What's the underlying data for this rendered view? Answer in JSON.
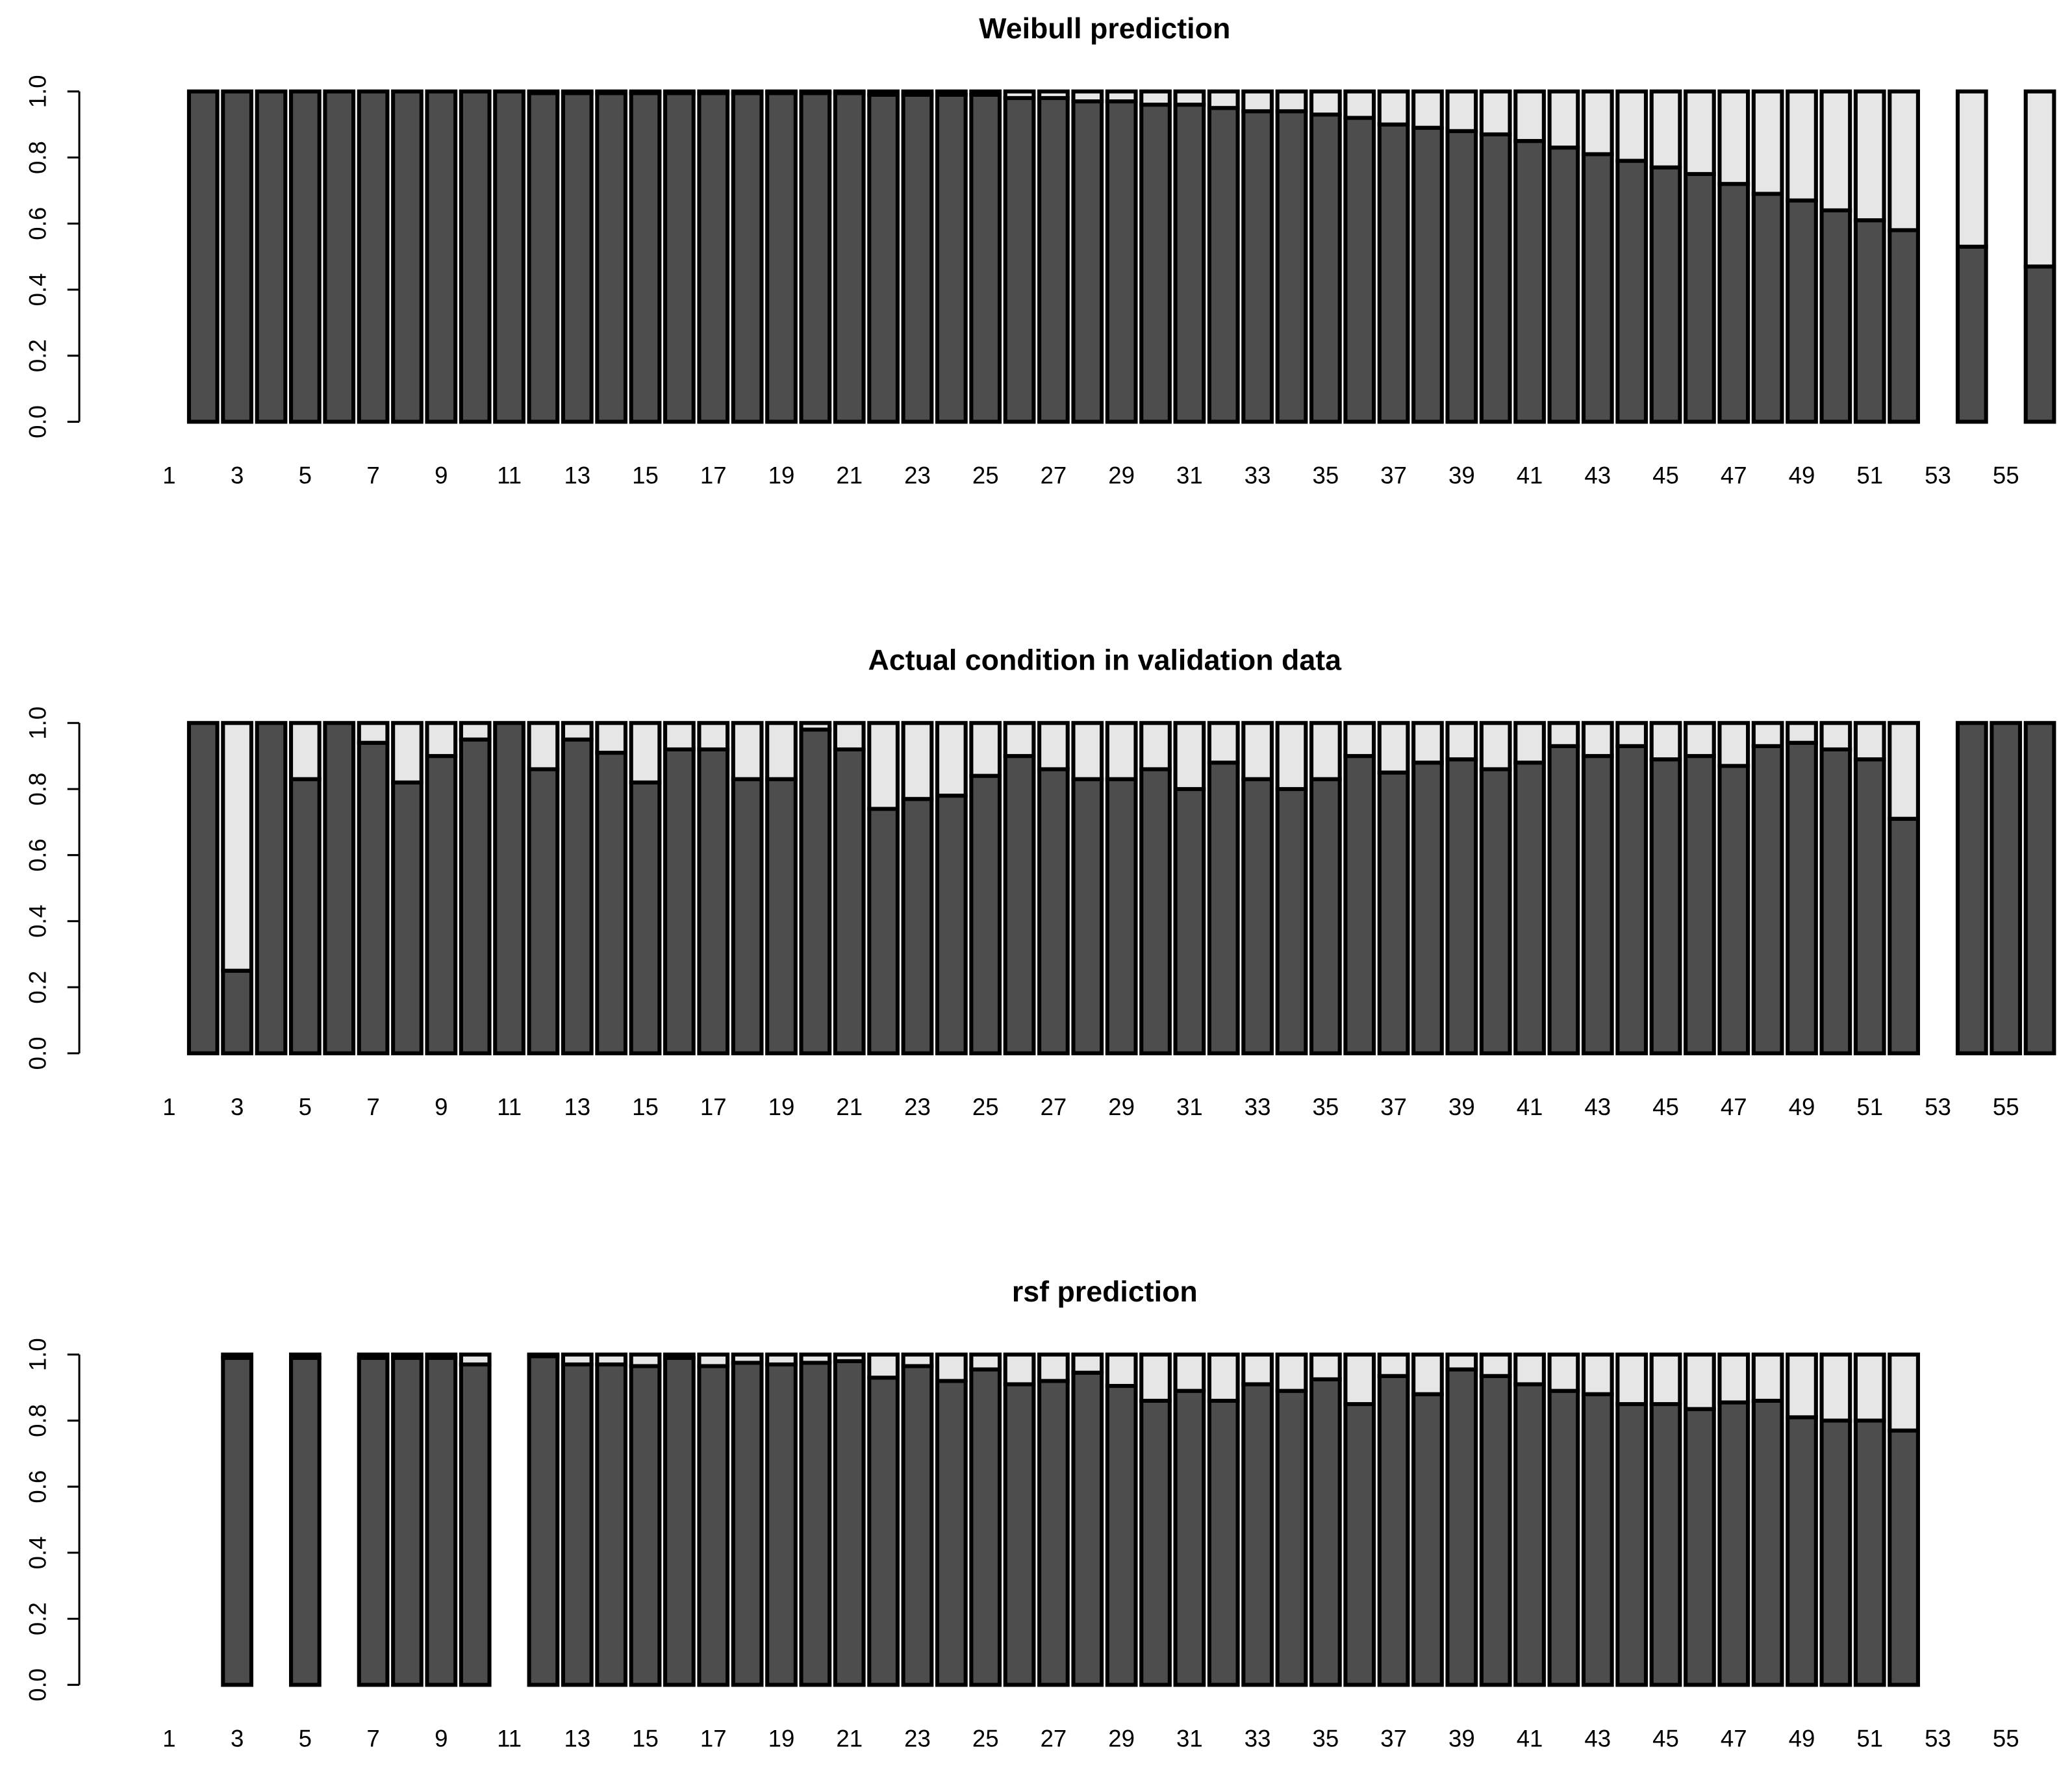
{
  "chart_data": [
    {
      "type": "bar",
      "stacked": true,
      "title": "Weibull prediction",
      "categories": [
        "1",
        null,
        "3",
        null,
        "5",
        null,
        "7",
        null,
        "9",
        null,
        "11",
        null,
        "13",
        null,
        "15",
        null,
        "17",
        null,
        "19",
        null,
        "21",
        null,
        "23",
        null,
        "25",
        null,
        "27",
        null,
        "29",
        null,
        "31",
        null,
        "33",
        null,
        "35",
        null,
        "37",
        null,
        "39",
        null,
        "41",
        null,
        "43",
        null,
        "45",
        null,
        "47",
        null,
        "49",
        null,
        "51",
        null,
        "53",
        null,
        "55",
        null
      ],
      "series": [
        {
          "color": "#4d4d4d",
          "values": [
            null,
            1,
            1,
            1,
            1,
            1,
            1,
            1,
            1,
            1,
            1,
            0.995,
            0.995,
            0.995,
            0.995,
            0.995,
            0.995,
            0.995,
            0.995,
            0.995,
            0.995,
            0.99,
            0.99,
            0.99,
            0.99,
            0.98,
            0.98,
            0.97,
            0.97,
            0.96,
            0.96,
            0.95,
            0.94,
            0.94,
            0.93,
            0.92,
            0.9,
            0.89,
            0.88,
            0.87,
            0.85,
            0.83,
            0.81,
            0.79,
            0.77,
            0.75,
            0.72,
            0.69,
            0.67,
            0.64,
            0.61,
            0.58,
            null,
            0.53,
            null,
            0.47
          ]
        },
        {
          "color": "#e6e6e6",
          "values": [
            null,
            0,
            0,
            0,
            0,
            0,
            0,
            0,
            0,
            0,
            0,
            0.005,
            0.005,
            0.005,
            0.005,
            0.005,
            0.005,
            0.005,
            0.005,
            0.005,
            0.005,
            0.01,
            0.01,
            0.01,
            0.01,
            0.02,
            0.02,
            0.03,
            0.03,
            0.04,
            0.04,
            0.05,
            0.06,
            0.06,
            0.07,
            0.08,
            0.1,
            0.11,
            0.12,
            0.13,
            0.15,
            0.17,
            0.19,
            0.21,
            0.23,
            0.25,
            0.28,
            0.31,
            0.33,
            0.36,
            0.39,
            0.42,
            null,
            0.47,
            null,
            0.53
          ]
        }
      ],
      "ylim": [
        0,
        1
      ],
      "yticks": [
        {
          "value": 0,
          "label": "0.0"
        },
        {
          "value": 0.2,
          "label": "0.2"
        },
        {
          "value": 0.4,
          "label": "0.4"
        },
        {
          "value": 0.6,
          "label": "0.6"
        },
        {
          "value": 0.8,
          "label": "0.8"
        },
        {
          "value": 1,
          "label": "1.0"
        }
      ]
    },
    {
      "type": "bar",
      "stacked": true,
      "title": "Actual condition in validation data",
      "categories": [
        "1",
        null,
        "3",
        null,
        "5",
        null,
        "7",
        null,
        "9",
        null,
        "11",
        null,
        "13",
        null,
        "15",
        null,
        "17",
        null,
        "19",
        null,
        "21",
        null,
        "23",
        null,
        "25",
        null,
        "27",
        null,
        "29",
        null,
        "31",
        null,
        "33",
        null,
        "35",
        null,
        "37",
        null,
        "39",
        null,
        "41",
        null,
        "43",
        null,
        "45",
        null,
        "47",
        null,
        "49",
        null,
        "51",
        null,
        "53",
        null,
        "55",
        null
      ],
      "series": [
        {
          "color": "#4d4d4d",
          "values": [
            null,
            1,
            0.25,
            1,
            0.83,
            1,
            0.94,
            0.82,
            0.9,
            0.95,
            1,
            0.86,
            0.95,
            0.91,
            0.82,
            0.92,
            0.92,
            0.83,
            0.83,
            0.98,
            0.92,
            0.74,
            0.77,
            0.78,
            0.84,
            0.9,
            0.86,
            0.83,
            0.83,
            0.86,
            0.8,
            0.88,
            0.83,
            0.8,
            0.83,
            0.9,
            0.85,
            0.88,
            0.89,
            0.86,
            0.88,
            0.93,
            0.9,
            0.93,
            0.89,
            0.9,
            0.87,
            0.93,
            0.94,
            0.92,
            0.89,
            0.71,
            null,
            1,
            1,
            1
          ]
        },
        {
          "color": "#e6e6e6",
          "values": [
            null,
            0,
            0.75,
            0,
            0.17,
            0,
            0.06,
            0.18,
            0.1,
            0.05,
            0,
            0.14,
            0.05,
            0.09,
            0.18,
            0.08,
            0.08,
            0.17,
            0.17,
            0.02,
            0.08,
            0.26,
            0.23,
            0.22,
            0.16,
            0.1,
            0.14,
            0.17,
            0.17,
            0.14,
            0.2,
            0.12,
            0.17,
            0.2,
            0.17,
            0.1,
            0.15,
            0.12,
            0.11,
            0.14,
            0.12,
            0.07,
            0.1,
            0.07,
            0.11,
            0.1,
            0.13,
            0.07,
            0.06,
            0.08,
            0.11,
            0.29,
            null,
            0,
            0,
            0
          ]
        }
      ],
      "ylim": [
        0,
        1
      ],
      "yticks": [
        {
          "value": 0,
          "label": "0.0"
        },
        {
          "value": 0.2,
          "label": "0.2"
        },
        {
          "value": 0.4,
          "label": "0.4"
        },
        {
          "value": 0.6,
          "label": "0.6"
        },
        {
          "value": 0.8,
          "label": "0.8"
        },
        {
          "value": 1,
          "label": "1.0"
        }
      ]
    },
    {
      "type": "bar",
      "stacked": true,
      "title": "rsf prediction",
      "categories": [
        "1",
        null,
        "3",
        null,
        "5",
        null,
        "7",
        null,
        "9",
        null,
        "11",
        null,
        "13",
        null,
        "15",
        null,
        "17",
        null,
        "19",
        null,
        "21",
        null,
        "23",
        null,
        "25",
        null,
        "27",
        null,
        "29",
        null,
        "31",
        null,
        "33",
        null,
        "35",
        null,
        "37",
        null,
        "39",
        null,
        "41",
        null,
        "43",
        null,
        "45",
        null,
        "47",
        null,
        "49",
        null,
        "51",
        null,
        "53",
        null,
        "55",
        null
      ],
      "series": [
        {
          "color": "#4d4d4d",
          "values": [
            null,
            null,
            0.99,
            null,
            0.99,
            null,
            0.99,
            0.99,
            0.99,
            0.97,
            null,
            0.995,
            0.97,
            0.97,
            0.965,
            0.99,
            0.965,
            0.975,
            0.97,
            0.975,
            0.98,
            0.93,
            0.965,
            0.92,
            0.955,
            0.91,
            0.92,
            0.945,
            0.905,
            0.86,
            0.89,
            0.86,
            0.91,
            0.89,
            0.925,
            0.85,
            0.935,
            0.88,
            0.955,
            0.935,
            0.91,
            0.89,
            0.88,
            0.85,
            0.85,
            0.835,
            0.855,
            0.86,
            0.81,
            0.8,
            0.8,
            0.77,
            null,
            null,
            null,
            null
          ]
        },
        {
          "color": "#e6e6e6",
          "values": [
            null,
            null,
            0.01,
            null,
            0.01,
            null,
            0.01,
            0.01,
            0.01,
            0.03,
            null,
            0.005,
            0.03,
            0.03,
            0.035,
            0.01,
            0.035,
            0.025,
            0.03,
            0.025,
            0.02,
            0.07,
            0.035,
            0.08,
            0.045,
            0.09,
            0.08,
            0.055,
            0.095,
            0.14,
            0.11,
            0.14,
            0.09,
            0.11,
            0.075,
            0.15,
            0.065,
            0.12,
            0.045,
            0.065,
            0.09,
            0.11,
            0.12,
            0.15,
            0.15,
            0.165,
            0.145,
            0.14,
            0.19,
            0.2,
            0.2,
            0.23,
            null,
            null,
            null,
            null
          ]
        }
      ],
      "ylim": [
        0,
        1
      ],
      "yticks": [
        {
          "value": 0,
          "label": "0.0"
        },
        {
          "value": 0.2,
          "label": "0.2"
        },
        {
          "value": 0.4,
          "label": "0.4"
        },
        {
          "value": 0.6,
          "label": "0.6"
        },
        {
          "value": 0.8,
          "label": "0.8"
        },
        {
          "value": 1,
          "label": "1.0"
        }
      ]
    }
  ]
}
